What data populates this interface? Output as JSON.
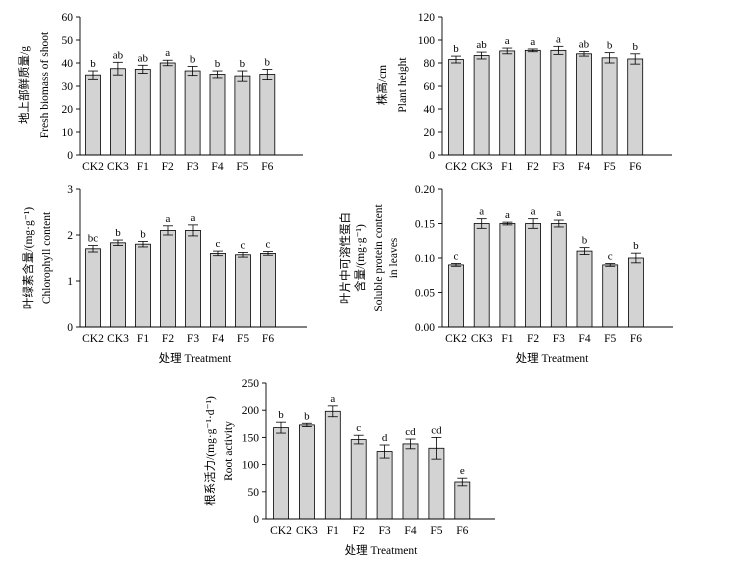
{
  "chart_data": [
    {
      "id": "shoot",
      "type": "bar",
      "categories": [
        "CK2",
        "CK3",
        "F1",
        "F2",
        "F3",
        "F4",
        "F5",
        "F6"
      ],
      "values": [
        34.7,
        37.5,
        37.2,
        40.0,
        36.5,
        35.0,
        34.3,
        35.0
      ],
      "errors": [
        1.8,
        2.8,
        1.8,
        1.2,
        2.0,
        1.5,
        2.2,
        2.2
      ],
      "labels": [
        "b",
        "ab",
        "ab",
        "a",
        "b",
        "b",
        "b",
        "b"
      ],
      "ylabel_lines": [
        "地上部鲜质量/g",
        "Fresh biomass of shoot"
      ],
      "xlabel": "",
      "ylim": [
        0,
        60
      ],
      "yticks": [
        0,
        10,
        20,
        30,
        40,
        50,
        60
      ],
      "tick_format": "int"
    },
    {
      "id": "height",
      "type": "bar",
      "categories": [
        "CK2",
        "CK3",
        "F1",
        "F2",
        "F3",
        "F4",
        "F5",
        "F6"
      ],
      "values": [
        83,
        86.5,
        90.5,
        91,
        91,
        88,
        84.5,
        83.5
      ],
      "errors": [
        3,
        3,
        2.5,
        1.2,
        3.5,
        2,
        4.5,
        4.5
      ],
      "labels": [
        "b",
        "ab",
        "a",
        "a",
        "a",
        "ab",
        "b",
        "b"
      ],
      "ylabel_lines": [
        "株高/cm",
        "Plant height"
      ],
      "xlabel": "",
      "ylim": [
        0,
        120
      ],
      "yticks": [
        0,
        20,
        40,
        60,
        80,
        100,
        120
      ],
      "tick_format": "int"
    },
    {
      "id": "chlorophyll",
      "type": "bar",
      "categories": [
        "CK2",
        "CK3",
        "F1",
        "F2",
        "F3",
        "F4",
        "F5",
        "F6"
      ],
      "values": [
        1.7,
        1.83,
        1.8,
        2.1,
        2.1,
        1.6,
        1.57,
        1.6
      ],
      "errors": [
        0.07,
        0.06,
        0.06,
        0.1,
        0.12,
        0.05,
        0.05,
        0.04
      ],
      "labels": [
        "bc",
        "b",
        "b",
        "a",
        "a",
        "c",
        "c",
        "c"
      ],
      "ylabel_lines": [
        "叶绿素含量/(mg·g⁻¹)",
        "Chlorophyll content"
      ],
      "xlabel": "处理 Treatment",
      "ylim": [
        0,
        3
      ],
      "yticks": [
        0,
        1,
        2,
        3
      ],
      "tick_format": "int"
    },
    {
      "id": "protein",
      "type": "bar",
      "categories": [
        "CK2",
        "CK3",
        "F1",
        "F2",
        "F3",
        "F4",
        "F5",
        "F6"
      ],
      "values": [
        0.09,
        0.15,
        0.15,
        0.15,
        0.15,
        0.11,
        0.09,
        0.1
      ],
      "errors": [
        0.002,
        0.007,
        0.002,
        0.007,
        0.005,
        0.005,
        0.002,
        0.007
      ],
      "labels": [
        "c",
        "a",
        "a",
        "a",
        "a",
        "b",
        "c",
        "b"
      ],
      "ylabel_lines": [
        "叶片中可溶性蛋白",
        "含量/(mg·g⁻¹)",
        "Soluble protein content",
        "in leaves"
      ],
      "xlabel": "处理 Treatment",
      "ylim": [
        0,
        0.2
      ],
      "yticks": [
        0,
        0.05,
        0.1,
        0.15,
        0.2
      ],
      "tick_format": "2dp"
    },
    {
      "id": "root",
      "type": "bar",
      "categories": [
        "CK2",
        "CK3",
        "F1",
        "F2",
        "F3",
        "F4",
        "F5",
        "F6"
      ],
      "values": [
        168,
        173,
        198,
        146,
        124,
        138,
        130,
        68
      ],
      "errors": [
        10,
        3,
        10,
        8,
        12,
        9,
        20,
        7
      ],
      "labels": [
        "b",
        "b",
        "a",
        "c",
        "d",
        "cd",
        "cd",
        "e"
      ],
      "ylabel_lines": [
        "根系活力/(mg·g⁻¹·d⁻¹)",
        "Root activity"
      ],
      "xlabel": "处理 Treatment",
      "ylim": [
        0,
        250
      ],
      "yticks": [
        0,
        50,
        100,
        150,
        200,
        250
      ],
      "tick_format": "int"
    }
  ]
}
